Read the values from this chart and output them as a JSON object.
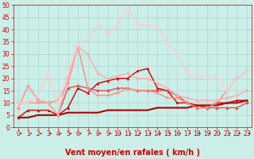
{
  "background_color": "#cceee8",
  "grid_color": "#aad4ce",
  "xlabel": "Vent moyen/en rafales ( km/h )",
  "xlim": [
    -0.5,
    23.5
  ],
  "ylim": [
    0,
    50
  ],
  "yticks": [
    0,
    5,
    10,
    15,
    20,
    25,
    30,
    35,
    40,
    45,
    50
  ],
  "xticks": [
    0,
    1,
    2,
    3,
    4,
    5,
    6,
    7,
    8,
    9,
    10,
    11,
    12,
    13,
    14,
    15,
    16,
    17,
    18,
    19,
    20,
    21,
    22,
    23
  ],
  "series": [
    {
      "x": [
        0,
        1,
        2,
        3,
        4,
        5,
        6,
        7,
        8,
        9,
        10,
        11,
        12,
        13,
        14,
        15,
        16,
        17,
        18,
        19,
        20,
        21,
        22,
        23
      ],
      "y": [
        4,
        4,
        5,
        5,
        5,
        6,
        6,
        6,
        6,
        7,
        7,
        7,
        7,
        7,
        8,
        8,
        8,
        8,
        9,
        9,
        9,
        10,
        10,
        11
      ],
      "color": "#aa0000",
      "lw": 1.5,
      "marker": null,
      "ms": 0
    },
    {
      "x": [
        0,
        1,
        2,
        3,
        4,
        5,
        6,
        7,
        8,
        9,
        10,
        11,
        12,
        13,
        14,
        15,
        16,
        17,
        18,
        19,
        20,
        21,
        22,
        23
      ],
      "y": [
        4,
        7,
        7,
        7,
        5,
        8,
        16,
        14,
        18,
        19,
        20,
        20,
        23,
        24,
        16,
        15,
        10,
        10,
        9,
        8,
        10,
        10,
        11,
        11
      ],
      "color": "#cc0000",
      "lw": 1.0,
      "marker": "^",
      "ms": 2.0
    },
    {
      "x": [
        0,
        1,
        2,
        3,
        4,
        5,
        6,
        7,
        8,
        9,
        10,
        11,
        12,
        13,
        14,
        15,
        16,
        17,
        18,
        19,
        20,
        21,
        22,
        23
      ],
      "y": [
        8,
        17,
        11,
        10,
        5,
        16,
        17,
        16,
        15,
        15,
        16,
        16,
        15,
        15,
        15,
        15,
        13,
        10,
        8,
        8,
        8,
        8,
        8,
        10
      ],
      "color": "#e05050",
      "lw": 1.0,
      "marker": "D",
      "ms": 2.0
    },
    {
      "x": [
        0,
        1,
        2,
        3,
        4,
        5,
        6,
        7,
        8,
        9,
        10,
        11,
        12,
        13,
        14,
        15,
        16,
        17,
        18,
        19,
        20,
        21,
        22,
        23
      ],
      "y": [
        10,
        10,
        10,
        10,
        11,
        18,
        33,
        16,
        13,
        13,
        14,
        16,
        15,
        15,
        14,
        12,
        12,
        10,
        8,
        8,
        10,
        15,
        20,
        23
      ],
      "color": "#ff8888",
      "lw": 1.0,
      "marker": "s",
      "ms": 2.0
    },
    {
      "x": [
        0,
        1,
        2,
        3,
        4,
        5,
        6,
        7,
        8,
        9,
        10,
        11,
        12,
        13,
        14,
        15,
        16,
        17,
        18,
        19,
        20,
        21,
        22,
        23
      ],
      "y": [
        8,
        17,
        11,
        10,
        5,
        20,
        33,
        30,
        22,
        20,
        21,
        22,
        20,
        20,
        18,
        16,
        13,
        12,
        11,
        11,
        11,
        12,
        13,
        15
      ],
      "color": "#ffaaaa",
      "lw": 1.0,
      "marker": "o",
      "ms": 2.0
    },
    {
      "x": [
        0,
        1,
        2,
        3,
        4,
        5,
        6,
        7,
        8,
        9,
        10,
        11,
        12,
        13,
        14,
        15,
        16,
        17,
        18,
        19,
        20,
        21,
        22,
        23
      ],
      "y": [
        10,
        10,
        13,
        22,
        10,
        22,
        34,
        36,
        42,
        38,
        42,
        49,
        42,
        42,
        41,
        35,
        30,
        22,
        21,
        21,
        21,
        15,
        20,
        23
      ],
      "color": "#ffcccc",
      "lw": 1.0,
      "marker": "^",
      "ms": 2.0
    }
  ],
  "arrow_color": "#cc0000",
  "xlabel_color": "#cc0000",
  "tick_color": "#cc0000",
  "tick_fontsize": 5.5,
  "xlabel_fontsize": 7.0
}
